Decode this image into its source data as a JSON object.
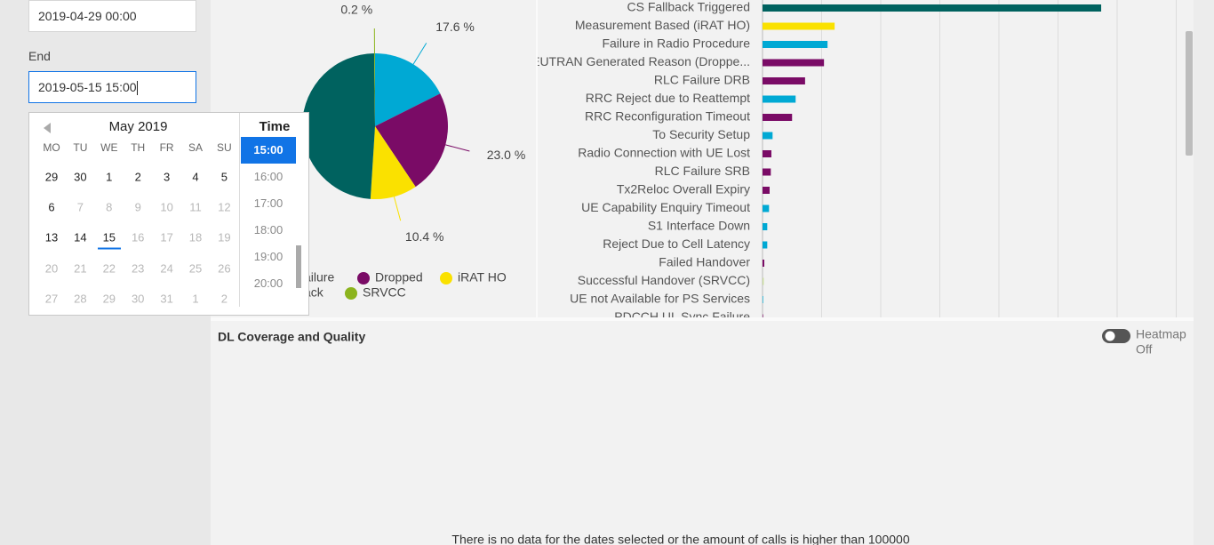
{
  "filters": {
    "start_value": "2019-04-29 00:00",
    "end_label": "End",
    "end_value": "2019-05-15 15:00"
  },
  "datepicker": {
    "month": "May 2019",
    "weekdays": [
      "MO",
      "TU",
      "WE",
      "TH",
      "FR",
      "SA",
      "SU"
    ],
    "weeks": [
      [
        29,
        30,
        1,
        2,
        3,
        4,
        5
      ],
      [
        6,
        7,
        8,
        9,
        10,
        11,
        12
      ],
      [
        13,
        14,
        15,
        16,
        17,
        18,
        19
      ],
      [
        20,
        21,
        22,
        23,
        24,
        25,
        26
      ],
      [
        27,
        28,
        29,
        30,
        31,
        1,
        2
      ]
    ],
    "muted": [
      [
        false,
        false,
        false,
        false,
        false,
        false,
        false
      ],
      [
        false,
        true,
        true,
        true,
        true,
        true,
        true
      ],
      [
        false,
        false,
        false,
        true,
        true,
        true,
        true
      ],
      [
        true,
        true,
        true,
        true,
        true,
        true,
        true
      ],
      [
        true,
        true,
        true,
        true,
        true,
        true,
        true
      ]
    ],
    "selected": [
      2,
      2
    ],
    "time_label": "Time",
    "times": [
      "15:00",
      "16:00",
      "17:00",
      "18:00",
      "19:00",
      "20:00"
    ],
    "selected_time": 0
  },
  "chart_data": [
    {
      "type": "pie",
      "categories": [
        "ack",
        "Dropped",
        "iRAT HO",
        "ailure",
        "SRVCC"
      ],
      "values": [
        17.6,
        23.0,
        10.4,
        48.8,
        0.2
      ],
      "value_labels": [
        "17.6 %",
        "23.0 %",
        "10.4 %",
        null,
        "0.2 %"
      ],
      "colors": [
        "#00a9d4",
        "#7a0b66",
        "#fae100",
        "#00625f",
        "#8cb41e"
      ]
    },
    {
      "type": "bar",
      "orientation": "horizontal",
      "categories": [
        "CS Fallback Triggered",
        "Measurement Based (iRAT HO)",
        "Failure in Radio Procedure",
        "EUTRAN Generated Reason (Droppe...",
        "RLC Failure DRB",
        "RRC Reject due to Reattempt",
        "RRC Reconfiguration Timeout",
        "To Security Setup",
        "Radio Connection with UE Lost",
        "RLC Failure SRB",
        "Tx2Reloc Overall Expiry",
        "UE Capability Enquiry Timeout",
        "S1 Interface Down",
        "Reject Due to Cell Latency",
        "Failed Handover",
        "Successful Handover (SRVCC)",
        "UE not Available for PS Services",
        "PDCCH UL Sync Failure"
      ],
      "values": [
        5.73,
        1.22,
        1.1,
        1.04,
        0.72,
        0.56,
        0.5,
        0.17,
        0.15,
        0.14,
        0.12,
        0.11,
        0.08,
        0.08,
        0.03,
        0.02,
        0.01,
        0.01
      ],
      "colors": [
        "#00625f",
        "#fae100",
        "#00a9d4",
        "#7a0b66",
        "#7a0b66",
        "#00a9d4",
        "#7a0b66",
        "#00a9d4",
        "#7a0b66",
        "#7a0b66",
        "#7a0b66",
        "#00a9d4",
        "#00a9d4",
        "#00a9d4",
        "#7a0b66",
        "#c9dc9a",
        "#00a9d4",
        "#7a0b66"
      ],
      "xlim": [
        0,
        7
      ],
      "xticks": [
        0,
        1,
        2,
        3,
        4,
        5,
        6,
        7
      ],
      "grid": true
    }
  ],
  "coverage_panel": {
    "title": "DL Coverage and Quality",
    "toggle_label": "Heatmap",
    "toggle_state": "Off",
    "message": "There is no data for the dates selected or the amount of calls is higher than 100000"
  }
}
